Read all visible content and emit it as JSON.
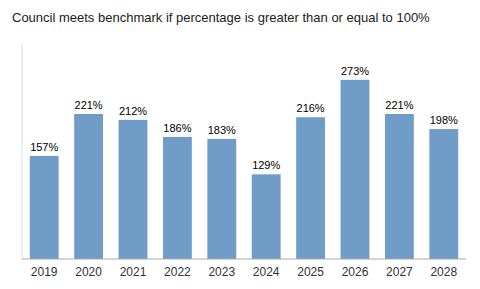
{
  "chart_data": {
    "type": "bar",
    "title": "Council meets benchmark if percentage is greater than or equal to 100%",
    "categories": [
      "2019",
      "2020",
      "2021",
      "2022",
      "2023",
      "2024",
      "2025",
      "2026",
      "2027",
      "2028"
    ],
    "values": [
      157,
      221,
      212,
      186,
      183,
      129,
      216,
      273,
      221,
      198
    ],
    "value_labels": [
      "157%",
      "221%",
      "212%",
      "186%",
      "183%",
      "129%",
      "216%",
      "273%",
      "221%",
      "198%"
    ],
    "color": "#6f9dc8",
    "ylim": [
      0,
      327.6
    ],
    "data_labels": true,
    "tick_labels": "x",
    "grid": false
  }
}
